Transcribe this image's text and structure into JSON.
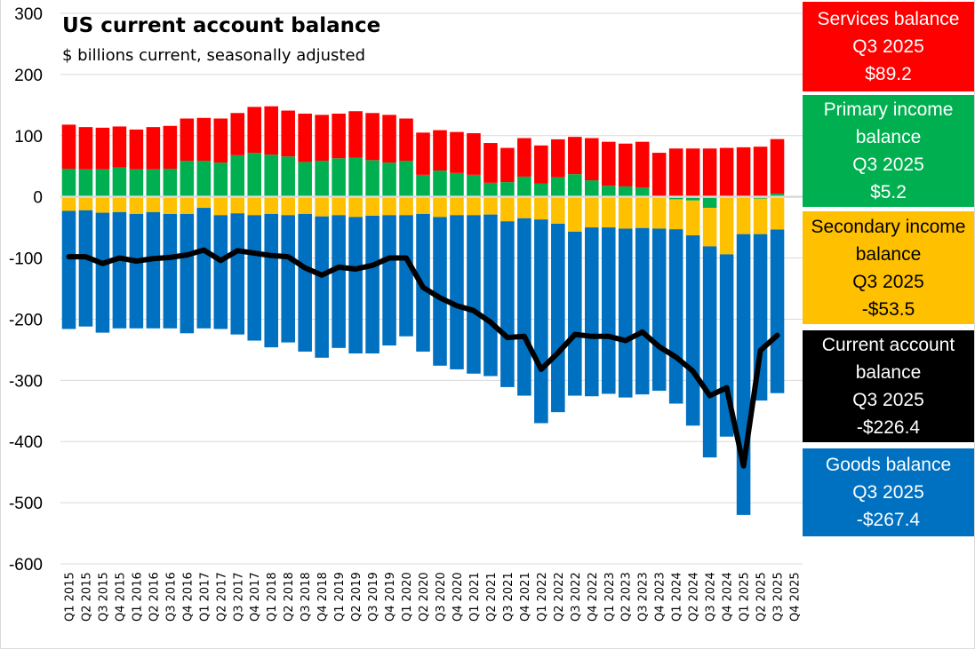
{
  "chart_data": {
    "type": "bar",
    "stacked": true,
    "title": "US current account balance",
    "subtitle": "$ billions current, seasonally adjusted",
    "xlabel": "",
    "ylabel": "",
    "ylim": [
      -600,
      300
    ],
    "yticks": [
      300,
      200,
      100,
      0,
      -100,
      -200,
      -300,
      -400,
      -500,
      -600
    ],
    "ytick_labels": [
      "300",
      "200",
      "100",
      "0",
      "-100",
      "-200",
      "-300",
      "-400",
      "-500",
      "-600"
    ],
    "grid": true,
    "categories": [
      "Q1 2015",
      "Q2 2015",
      "Q3 2015",
      "Q4 2015",
      "Q1 2016",
      "Q2 2016",
      "Q3 2016",
      "Q4 2016",
      "Q1 2017",
      "Q2 2017",
      "Q3 2017",
      "Q4 2017",
      "Q1 2018",
      "Q2 2018",
      "Q3 2018",
      "Q4 2018",
      "Q1 2019",
      "Q2 2019",
      "Q3 2019",
      "Q4 2019",
      "Q1 2020",
      "Q2 2020",
      "Q3 2020",
      "Q4 2020",
      "Q1 2021",
      "Q2 2021",
      "Q3 2021",
      "Q4 2021",
      "Q1 2022",
      "Q2 2022",
      "Q3 2022",
      "Q4 2022",
      "Q1 2023",
      "Q2 2023",
      "Q3 2023",
      "Q4 2023",
      "Q1 2024",
      "Q2 2024",
      "Q3 2024",
      "Q4 2024",
      "Q1 2025",
      "Q2 2025",
      "Q3 2025",
      "Q4 2025"
    ],
    "series": [
      {
        "name": "Primary income balance",
        "color": "#00b050",
        "kind": "bar",
        "values": [
          46,
          45,
          45,
          48,
          45,
          45,
          46,
          59,
          59,
          56,
          68,
          72,
          69,
          66,
          57,
          59,
          63,
          64,
          60,
          56,
          59,
          36,
          43,
          39,
          36,
          23,
          24,
          33,
          22,
          32,
          37,
          27,
          18,
          17,
          15,
          0,
          -4,
          -6,
          -18,
          0,
          -1,
          -3,
          5.2,
          null
        ]
      },
      {
        "name": "Services balance",
        "color": "#ff0000",
        "kind": "bar",
        "values": [
          72,
          69,
          68,
          67,
          65,
          69,
          70,
          69,
          70,
          72,
          69,
          75,
          79,
          75,
          79,
          75,
          73,
          76,
          77,
          78,
          69,
          69,
          66,
          67,
          68,
          65,
          56,
          63,
          62,
          62,
          61,
          69,
          72,
          70,
          75,
          72,
          79,
          79,
          79,
          80,
          81,
          82,
          89.2,
          null
        ]
      },
      {
        "name": "Secondary income balance",
        "color": "#ffc000",
        "kind": "bar",
        "values": [
          -23,
          -22,
          -26,
          -25,
          -28,
          -25,
          -28,
          -28,
          -18,
          -30,
          -27,
          -30,
          -28,
          -30,
          -28,
          -32,
          -30,
          -33,
          -31,
          -30,
          -30,
          -28,
          -33,
          -30,
          -30,
          -29,
          -40,
          -35,
          -37,
          -44,
          -57,
          -50,
          -50,
          -52,
          -51,
          -52,
          -49,
          -57,
          -63,
          -94,
          -60,
          -58,
          -53.5,
          null
        ]
      },
      {
        "name": "Goods balance",
        "color": "#0070c0",
        "kind": "bar",
        "values": [
          -193,
          -190,
          -196,
          -190,
          -187,
          -190,
          -187,
          -195,
          -197,
          -186,
          -198,
          -205,
          -218,
          -208,
          -225,
          -231,
          -217,
          -223,
          -225,
          -213,
          -198,
          -225,
          -243,
          -252,
          -259,
          -264,
          -271,
          -290,
          -333,
          -308,
          -268,
          -276,
          -272,
          -276,
          -272,
          -265,
          -285,
          -311,
          -345,
          -298,
          -459,
          -272,
          -267.4,
          null
        ]
      },
      {
        "name": "Current account balance",
        "color": "#000000",
        "kind": "line",
        "values": [
          -98,
          -98,
          -109,
          -100,
          -105,
          -101,
          -99,
          -95,
          -87,
          -104,
          -88,
          -92,
          -96,
          -98,
          -116,
          -128,
          -115,
          -118,
          -112,
          -100,
          -100,
          -148,
          -165,
          -178,
          -186,
          -205,
          -230,
          -228,
          -282,
          -255,
          -225,
          -228,
          -228,
          -235,
          -221,
          -245,
          -262,
          -285,
          -325,
          -312,
          -440,
          -251,
          -226.4,
          null
        ]
      }
    ]
  },
  "panels": {
    "services": {
      "line1": "Services balance",
      "line2": "Q3 2025",
      "line3": "$89.2",
      "color": "#ff0000"
    },
    "primary": {
      "line1": "Primary income",
      "line2": "balance",
      "line3": "Q3 2025",
      "line4": "$5.2",
      "color": "#00b050"
    },
    "secondary": {
      "line1": "Secondary income",
      "line2": "balance",
      "line3": "Q3 2025",
      "line4": "-$53.5",
      "color": "#ffc000"
    },
    "current": {
      "line1": "Current account",
      "line2": "balance",
      "line3": "Q3 2025",
      "line4": "-$226.4",
      "color": "#000000"
    },
    "goods": {
      "line1": "Goods balance",
      "line2": "Q3 2025",
      "line3": "-$267.4",
      "color": "#0070c0"
    }
  }
}
